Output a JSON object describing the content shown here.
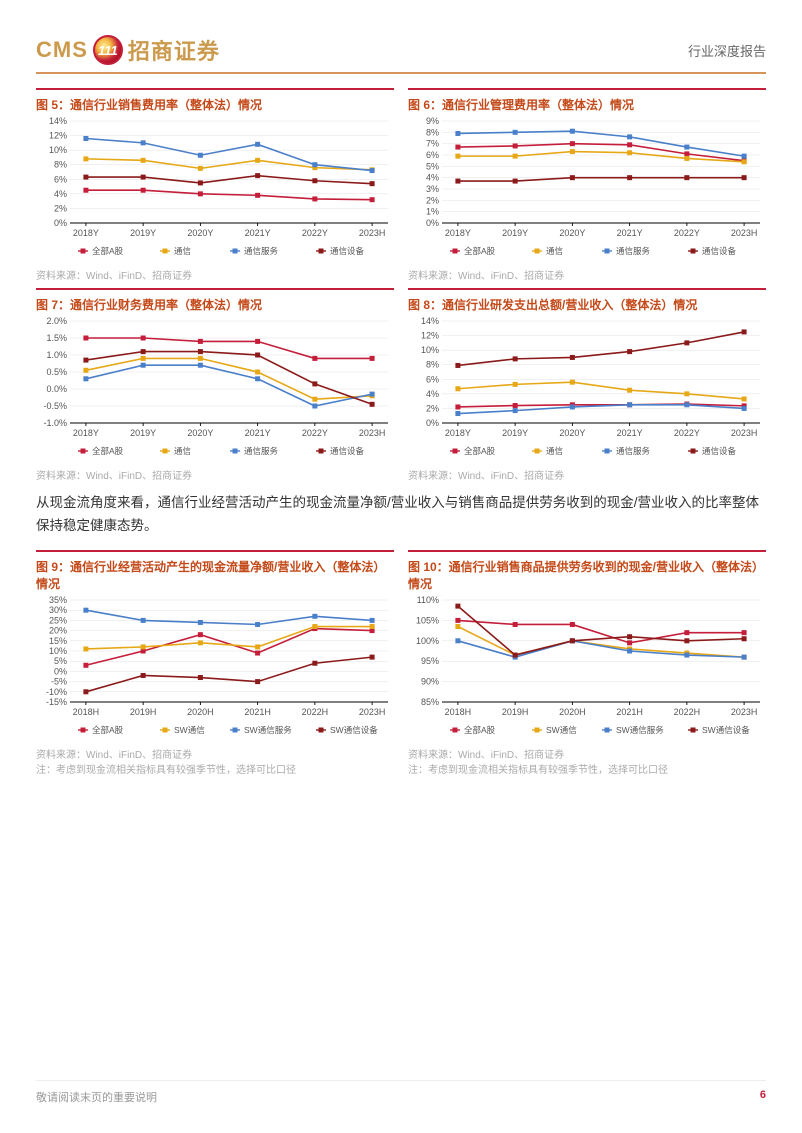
{
  "header": {
    "cms": "CMS",
    "logo_text": "111",
    "cn": "招商证券",
    "report_type": "行业深度报告"
  },
  "colors": {
    "red_dark": "#c41e3a",
    "red_bright": "#b22222",
    "yellow": "#e6a817",
    "blue": "#4a7fc9",
    "dark_red": "#8b1a1a",
    "grid": "#e0e0e0",
    "axis": "#000000"
  },
  "x_labels_Y": [
    "2018Y",
    "2019Y",
    "2020Y",
    "2021Y",
    "2022Y",
    "2023H"
  ],
  "x_labels_H": [
    "2018H",
    "2019H",
    "2020H",
    "2021H",
    "2022H",
    "2023H"
  ],
  "legend_A": [
    "全部A股",
    "通信",
    "通信服务",
    "通信设备"
  ],
  "legend_B": [
    "全部A股",
    "SW通信",
    "SW通信服务",
    "SW通信设备"
  ],
  "charts": [
    {
      "id": "fig5",
      "title": "图 5：通信行业销售费用率（整体法）情况",
      "ylabel_fmt": "pct",
      "ylim": [
        0,
        14
      ],
      "ystep": 2,
      "series": [
        {
          "color": "#c41e3a",
          "values": [
            4.5,
            4.5,
            4.0,
            3.8,
            3.3,
            3.2
          ]
        },
        {
          "color": "#e6a817",
          "values": [
            8.8,
            8.6,
            7.5,
            8.6,
            7.6,
            7.3
          ]
        },
        {
          "color": "#4a7fc9",
          "values": [
            11.6,
            11.0,
            9.3,
            10.8,
            8.0,
            7.2
          ]
        },
        {
          "color": "#8b1a1a",
          "values": [
            6.3,
            6.3,
            5.5,
            6.5,
            5.8,
            5.4
          ]
        }
      ],
      "source": "资料来源：Wind、iFinD、招商证券",
      "legend": "A",
      "x": "Y"
    },
    {
      "id": "fig6",
      "title": "图 6：通信行业管理费用率（整体法）情况",
      "ylabel_fmt": "pct",
      "ylim": [
        0,
        9
      ],
      "ystep": 1,
      "series": [
        {
          "color": "#c41e3a",
          "values": [
            6.7,
            6.8,
            7.0,
            6.9,
            6.1,
            5.5
          ]
        },
        {
          "color": "#e6a817",
          "values": [
            5.9,
            5.9,
            6.3,
            6.2,
            5.7,
            5.4
          ]
        },
        {
          "color": "#4a7fc9",
          "values": [
            7.9,
            8.0,
            8.1,
            7.6,
            6.7,
            5.9
          ]
        },
        {
          "color": "#8b1a1a",
          "values": [
            3.7,
            3.7,
            4.0,
            4.0,
            4.0,
            4.0
          ]
        }
      ],
      "source": "资料来源：Wind、iFinD、招商证券",
      "legend": "A",
      "x": "Y"
    },
    {
      "id": "fig7",
      "title": "图 7：通信行业财务费用率（整体法）情况",
      "ylabel_fmt": "pct1",
      "ylim": [
        -1.0,
        2.0
      ],
      "ystep": 0.5,
      "series": [
        {
          "color": "#c41e3a",
          "values": [
            1.5,
            1.5,
            1.4,
            1.4,
            0.9,
            0.9
          ]
        },
        {
          "color": "#e6a817",
          "values": [
            0.55,
            0.9,
            0.9,
            0.5,
            -0.3,
            -0.2
          ]
        },
        {
          "color": "#4a7fc9",
          "values": [
            0.3,
            0.7,
            0.7,
            0.3,
            -0.5,
            -0.15
          ]
        },
        {
          "color": "#8b1a1a",
          "values": [
            0.85,
            1.1,
            1.1,
            1.0,
            0.15,
            -0.45
          ]
        }
      ],
      "source": "资料来源：Wind、iFinD、招商证券",
      "legend": "A",
      "x": "Y"
    },
    {
      "id": "fig8",
      "title": "图 8：通信行业研发支出总额/营业收入（整体法）情况",
      "ylabel_fmt": "pct",
      "ylim": [
        0,
        14
      ],
      "ystep": 2,
      "series": [
        {
          "color": "#c41e3a",
          "values": [
            2.2,
            2.4,
            2.5,
            2.5,
            2.6,
            2.35
          ]
        },
        {
          "color": "#e6a817",
          "values": [
            4.7,
            5.3,
            5.6,
            4.5,
            4.0,
            3.3
          ]
        },
        {
          "color": "#4a7fc9",
          "values": [
            1.3,
            1.7,
            2.2,
            2.5,
            2.5,
            2.0
          ]
        },
        {
          "color": "#8b1a1a",
          "values": [
            7.9,
            8.8,
            9.0,
            9.8,
            11.0,
            12.5
          ]
        }
      ],
      "source": "资料来源：Wind、iFinD、招商证券",
      "legend": "A",
      "x": "Y"
    },
    {
      "id": "fig9",
      "title": "图 9：通信行业经营活动产生的现金流量净额/营业收入（整体法）情况",
      "ylabel_fmt": "pct",
      "ylim": [
        -15,
        35
      ],
      "ystep": 5,
      "series": [
        {
          "color": "#c41e3a",
          "values": [
            3,
            10,
            18,
            9,
            21,
            20
          ]
        },
        {
          "color": "#e6a817",
          "values": [
            11,
            12,
            14,
            12,
            22,
            22
          ]
        },
        {
          "color": "#4a7fc9",
          "values": [
            30,
            25,
            24,
            23,
            27,
            25
          ]
        },
        {
          "color": "#8b1a1a",
          "values": [
            -10,
            -2,
            -3,
            -5,
            4,
            7
          ]
        }
      ],
      "source": "资料来源：Wind、iFinD、招商证券",
      "note": "注：考虑到现金流相关指标具有较强季节性，选择可比口径",
      "legend": "B",
      "x": "H"
    },
    {
      "id": "fig10",
      "title": "图 10：通信行业销售商品提供劳务收到的现金/营业收入（整体法）情况",
      "ylabel_fmt": "pct",
      "ylim": [
        85,
        110
      ],
      "ystep": 5,
      "series": [
        {
          "color": "#c41e3a",
          "values": [
            105,
            104,
            104,
            99.5,
            102,
            102
          ]
        },
        {
          "color": "#e6a817",
          "values": [
            103.5,
            96.5,
            100,
            98,
            97,
            96
          ]
        },
        {
          "color": "#4a7fc9",
          "values": [
            100,
            96,
            100,
            97.5,
            96.5,
            96
          ]
        },
        {
          "color": "#8b1a1a",
          "values": [
            108.5,
            96.5,
            100,
            101,
            100,
            100.5
          ]
        }
      ],
      "source": "资料来源：Wind、iFinD、招商证券",
      "note": "注：考虑到现金流相关指标具有较强季节性，选择可比口径",
      "legend": "B",
      "x": "H"
    }
  ],
  "body_text": "从现金流角度来看，通信行业经营活动产生的现金流量净额/营业收入与销售商品提供劳务收到的现金/营业收入的比率整体保持稳定健康态势。",
  "footer": {
    "disclaimer": "敬请阅读末页的重要说明",
    "page": "6"
  }
}
